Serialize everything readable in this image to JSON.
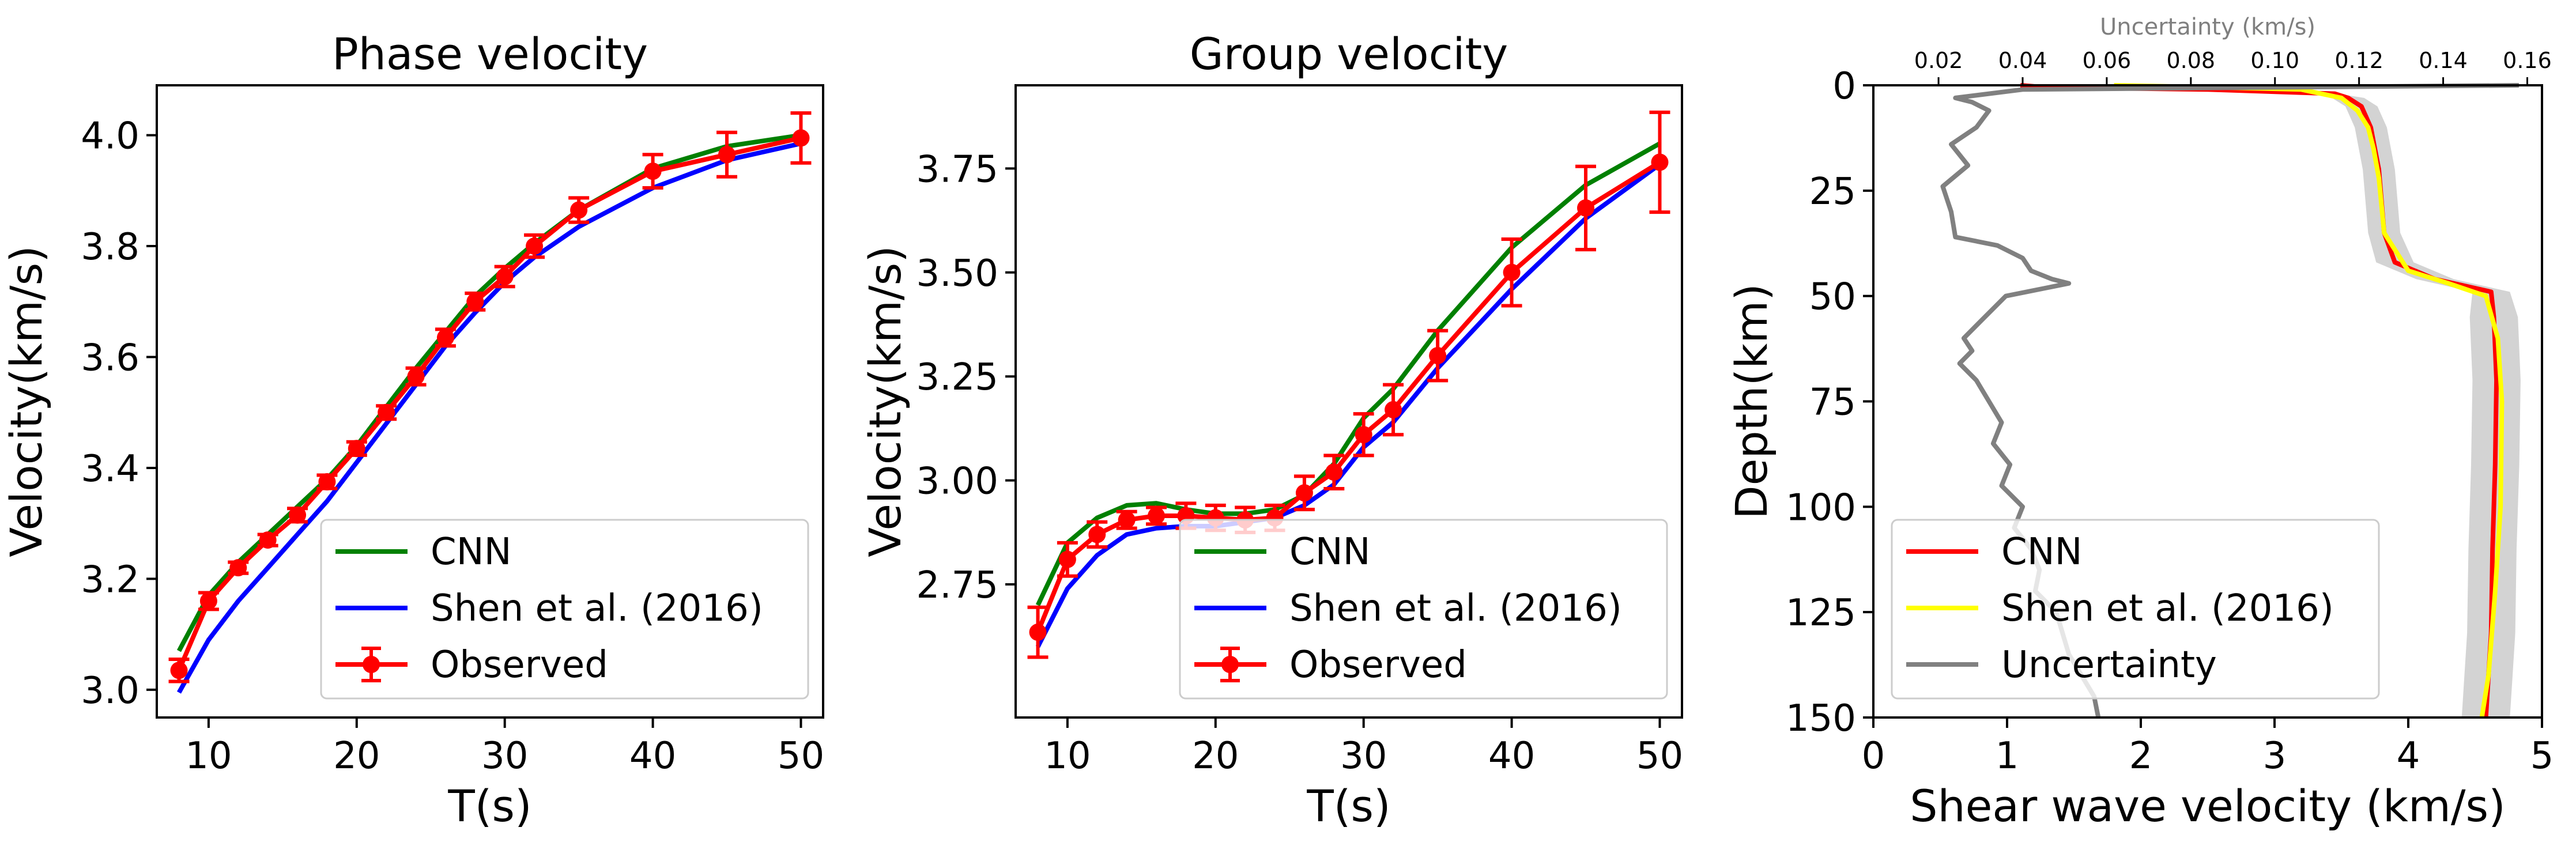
{
  "chart_data": [
    {
      "type": "line",
      "title": "Phase velocity",
      "xlabel": "T(s)",
      "ylabel": "Velocity(km/s)",
      "xlim": [
        6.5,
        51.5
      ],
      "ylim": [
        2.95,
        4.09
      ],
      "xticks": [
        "10",
        "20",
        "30",
        "40",
        "50"
      ],
      "yticks": [
        "3.0",
        "3.2",
        "3.4",
        "3.6",
        "3.8",
        "4.0"
      ],
      "legend_position": "lower-right",
      "series": [
        {
          "name": "CNN",
          "color": "#008000",
          "x": [
            8,
            10,
            12,
            14,
            16,
            18,
            20,
            22,
            24,
            26,
            28,
            30,
            32,
            35,
            40,
            45,
            50
          ],
          "y": [
            3.07,
            3.17,
            3.23,
            3.28,
            3.33,
            3.38,
            3.44,
            3.51,
            3.58,
            3.645,
            3.71,
            3.76,
            3.805,
            3.865,
            3.94,
            3.98,
            4.0
          ]
        },
        {
          "name": "Shen et al. (2016)",
          "color": "#0000ff",
          "x": [
            8,
            10,
            12,
            14,
            16,
            18,
            20,
            22,
            24,
            26,
            28,
            30,
            32,
            35,
            40,
            45,
            50
          ],
          "y": [
            2.995,
            3.09,
            3.16,
            3.22,
            3.28,
            3.34,
            3.41,
            3.48,
            3.55,
            3.62,
            3.68,
            3.735,
            3.78,
            3.835,
            3.905,
            3.955,
            3.985
          ]
        },
        {
          "name": "Observed",
          "color": "#ff0000",
          "x": [
            8,
            10,
            12,
            14,
            16,
            18,
            20,
            22,
            24,
            26,
            28,
            30,
            32,
            35,
            40,
            45,
            50
          ],
          "y": [
            3.035,
            3.16,
            3.22,
            3.27,
            3.315,
            3.375,
            3.435,
            3.5,
            3.565,
            3.635,
            3.7,
            3.745,
            3.8,
            3.865,
            3.935,
            3.965,
            3.995
          ],
          "err": [
            0.02,
            0.015,
            0.01,
            0.01,
            0.012,
            0.012,
            0.012,
            0.012,
            0.015,
            0.015,
            0.015,
            0.018,
            0.02,
            0.022,
            0.03,
            0.04,
            0.045
          ]
        }
      ]
    },
    {
      "type": "line",
      "title": "Group velocity",
      "xlabel": "T(s)",
      "ylabel": "Velocity(km/s)",
      "xlim": [
        6.5,
        51.5
      ],
      "ylim": [
        2.43,
        3.95
      ],
      "xticks": [
        "10",
        "20",
        "30",
        "40",
        "50"
      ],
      "yticks": [
        "2.75",
        "3.00",
        "3.25",
        "3.50",
        "3.75"
      ],
      "legend_position": "lower-right",
      "series": [
        {
          "name": "CNN",
          "color": "#008000",
          "x": [
            8,
            10,
            12,
            14,
            16,
            18,
            20,
            22,
            24,
            26,
            28,
            30,
            32,
            35,
            40,
            45,
            50
          ],
          "y": [
            2.7,
            2.85,
            2.91,
            2.94,
            2.945,
            2.93,
            2.92,
            2.92,
            2.93,
            2.965,
            3.04,
            3.15,
            3.22,
            3.36,
            3.56,
            3.71,
            3.81
          ]
        },
        {
          "name": "Shen et al. (2016)",
          "color": "#0000ff",
          "x": [
            8,
            10,
            12,
            14,
            16,
            18,
            20,
            22,
            24,
            26,
            28,
            30,
            32,
            35,
            40,
            45,
            50
          ],
          "y": [
            2.6,
            2.74,
            2.82,
            2.87,
            2.885,
            2.89,
            2.89,
            2.9,
            2.91,
            2.94,
            2.99,
            3.08,
            3.14,
            3.27,
            3.46,
            3.63,
            3.76
          ]
        },
        {
          "name": "Observed",
          "color": "#ff0000",
          "x": [
            8,
            10,
            12,
            14,
            16,
            18,
            20,
            22,
            24,
            26,
            28,
            30,
            32,
            35,
            40,
            45,
            50
          ],
          "y": [
            2.635,
            2.81,
            2.87,
            2.905,
            2.915,
            2.915,
            2.91,
            2.905,
            2.91,
            2.97,
            3.02,
            3.11,
            3.17,
            3.3,
            3.5,
            3.655,
            3.765
          ],
          "err": [
            0.06,
            0.04,
            0.03,
            0.02,
            0.02,
            0.03,
            0.03,
            0.03,
            0.03,
            0.04,
            0.04,
            0.05,
            0.06,
            0.06,
            0.08,
            0.1,
            0.12
          ]
        }
      ]
    },
    {
      "type": "line",
      "xlabel": "Shear wave velocity (km/s)",
      "ylabel": "Depth(km)",
      "top_xlabel": "Uncertainty (km/s)",
      "xlim": [
        0,
        5
      ],
      "ylim": [
        150,
        0
      ],
      "top_xlim": [
        0.0045,
        0.1635
      ],
      "xticks": [
        "0",
        "1",
        "2",
        "3",
        "4",
        "5"
      ],
      "yticks": [
        "0",
        "25",
        "50",
        "75",
        "100",
        "125",
        "150"
      ],
      "top_xticks": [
        "0.02",
        "0.04",
        "0.06",
        "0.08",
        "0.10",
        "0.12",
        "0.14",
        "0.16"
      ],
      "legend_position": "lower-left",
      "band_color": "#d3d3d3",
      "series": [
        {
          "name": "CNN",
          "color": "#ff0000",
          "x": [
            1.1,
            1.3,
            2.5,
            3.45,
            3.55,
            3.65,
            3.72,
            3.78,
            3.82,
            3.9,
            4.2,
            4.62,
            4.64,
            4.66,
            4.65,
            4.63,
            4.62,
            4.6,
            4.58
          ],
          "y": [
            0,
            0.5,
            1,
            2,
            3,
            5,
            10,
            20,
            35,
            42,
            46,
            49,
            55,
            70,
            90,
            110,
            130,
            140,
            150
          ]
        },
        {
          "name": "Shen et al. (2016)",
          "color": "#ffff00",
          "x": [
            1.8,
            2.6,
            3.2,
            3.5,
            3.62,
            3.7,
            3.74,
            3.78,
            3.82,
            4.0,
            4.3,
            4.58,
            4.67,
            4.7,
            4.69,
            4.65,
            4.6,
            4.55
          ],
          "y": [
            0,
            0.5,
            1,
            3,
            6,
            10,
            15,
            22,
            35,
            44,
            47,
            50,
            60,
            75,
            100,
            120,
            140,
            150
          ]
        },
        {
          "name": "Uncertainty",
          "color": "#808080",
          "x": [
            0.158,
            0.04,
            0.024,
            0.028,
            0.032,
            0.029,
            0.023,
            0.027,
            0.021,
            0.023,
            0.024,
            0.034,
            0.04,
            0.042,
            0.047,
            0.051,
            0.036,
            0.031,
            0.026,
            0.028,
            0.025,
            0.029,
            0.032,
            0.035,
            0.033,
            0.037,
            0.035,
            0.04,
            0.038,
            0.042,
            0.044,
            0.043,
            0.048,
            0.051,
            0.057,
            0.058
          ],
          "y": [
            0,
            1,
            3,
            4,
            6,
            10,
            14,
            19,
            24,
            30,
            36,
            38,
            41,
            44,
            46,
            47,
            50,
            55,
            60,
            63,
            66,
            70,
            75,
            80,
            85,
            90,
            95,
            100,
            105,
            110,
            115,
            120,
            125,
            135,
            145,
            150
          ]
        }
      ]
    }
  ]
}
